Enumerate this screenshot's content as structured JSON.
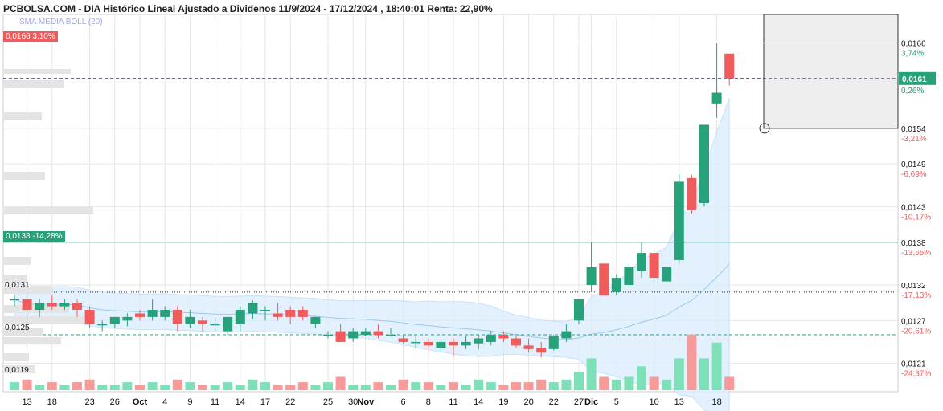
{
  "header": {
    "title": "PCBOLSA.COM - DIA Histórico Lineal Ajustado a Dividenos 11/9/2024 - 17/12/2024 , 18:40:01 Renta: 22,90%",
    "overlay_label": "SMA MEDIA BOLL (20)"
  },
  "colors": {
    "up": "#26a17a",
    "down": "#f05b5b",
    "band": "#dceefd",
    "grid": "#e6e6e6"
  },
  "levels": {
    "top_tag": {
      "price": 0.0166,
      "label": "0,0166",
      "pct": "3,10%"
    },
    "green_tag": {
      "price": 0.0138,
      "label": "0,0138",
      "pct": "-14,28%"
    },
    "dotted_label": {
      "price": 0.0131,
      "label": "0,0131"
    },
    "dashed_label": {
      "price": 0.0125,
      "label": "0,0125"
    },
    "bottom_label": {
      "price": 0.0119,
      "label": "0,0119"
    },
    "current": {
      "price": 0.0161,
      "label": "0,0161"
    }
  },
  "chart_data": {
    "type": "candlestick",
    "title": "PCBOLSA.COM - DIA Histórico Lineal Ajustado a Dividenos 11/9/2024 - 17/12/2024",
    "ylim": [
      0.0117,
      0.017
    ],
    "y_ticks": [
      {
        "price": 0.0166,
        "label": "0,0166",
        "pct": "3,74%"
      },
      {
        "price": 0.0154,
        "label": "0,0154",
        "pct": "-3,21%"
      },
      {
        "price": 0.0149,
        "label": "0,0149",
        "pct": "-6,69%"
      },
      {
        "price": 0.0143,
        "label": "0,0143",
        "pct": "-10,17%"
      },
      {
        "price": 0.0138,
        "label": "0,0138",
        "pct": "-13,65%"
      },
      {
        "price": 0.0132,
        "label": "0,0132",
        "pct": "-17,13%"
      },
      {
        "price": 0.0127,
        "label": "0,0127",
        "pct": "-20,61%"
      },
      {
        "price": 0.0121,
        "label": "0,0121",
        "pct": "-24,37%"
      }
    ],
    "current_pct": "0,26%",
    "x_labels": [
      {
        "i": 1,
        "label": "13"
      },
      {
        "i": 3,
        "label": "18"
      },
      {
        "i": 6,
        "label": "23"
      },
      {
        "i": 8,
        "label": "26"
      },
      {
        "i": 10,
        "label": "Oct"
      },
      {
        "i": 12,
        "label": "4"
      },
      {
        "i": 14,
        "label": "9"
      },
      {
        "i": 16,
        "label": "11"
      },
      {
        "i": 18,
        "label": "14"
      },
      {
        "i": 20,
        "label": "17"
      },
      {
        "i": 22,
        "label": "22"
      },
      {
        "i": 25,
        "label": "25"
      },
      {
        "i": 27,
        "label": "30"
      },
      {
        "i": 28,
        "label": "Nov"
      },
      {
        "i": 31,
        "label": "6"
      },
      {
        "i": 33,
        "label": "8"
      },
      {
        "i": 35,
        "label": "11"
      },
      {
        "i": 37,
        "label": "14"
      },
      {
        "i": 39,
        "label": "19"
      },
      {
        "i": 41,
        "label": "20"
      },
      {
        "i": 43,
        "label": "22"
      },
      {
        "i": 45,
        "label": "27"
      },
      {
        "i": 46,
        "label": "Dic"
      },
      {
        "i": 48,
        "label": "5"
      },
      {
        "i": 51,
        "label": "10"
      },
      {
        "i": 53,
        "label": "13"
      },
      {
        "i": 56,
        "label": "18"
      }
    ],
    "candles": [
      {
        "o": 0.013,
        "h": 0.01305,
        "l": 0.0129,
        "c": 0.013
      },
      {
        "o": 0.013,
        "h": 0.0131,
        "l": 0.01272,
        "c": 0.01285
      },
      {
        "o": 0.01285,
        "h": 0.013,
        "l": 0.01275,
        "c": 0.01295
      },
      {
        "o": 0.01295,
        "h": 0.01305,
        "l": 0.01285,
        "c": 0.0129
      },
      {
        "o": 0.0129,
        "h": 0.013,
        "l": 0.01285,
        "c": 0.01295
      },
      {
        "o": 0.01295,
        "h": 0.013,
        "l": 0.01275,
        "c": 0.01285
      },
      {
        "o": 0.01285,
        "h": 0.0129,
        "l": 0.0126,
        "c": 0.01265
      },
      {
        "o": 0.01265,
        "h": 0.0127,
        "l": 0.01255,
        "c": 0.01265
      },
      {
        "o": 0.01265,
        "h": 0.01275,
        "l": 0.0126,
        "c": 0.01275
      },
      {
        "o": 0.0127,
        "h": 0.0128,
        "l": 0.01262,
        "c": 0.01275
      },
      {
        "o": 0.0128,
        "h": 0.01285,
        "l": 0.0127,
        "c": 0.01275
      },
      {
        "o": 0.01275,
        "h": 0.013,
        "l": 0.0127,
        "c": 0.01285
      },
      {
        "o": 0.01275,
        "h": 0.0129,
        "l": 0.0127,
        "c": 0.01285
      },
      {
        "o": 0.01285,
        "h": 0.0129,
        "l": 0.01255,
        "c": 0.01265
      },
      {
        "o": 0.01265,
        "h": 0.01285,
        "l": 0.0126,
        "c": 0.01275
      },
      {
        "o": 0.0127,
        "h": 0.01275,
        "l": 0.01255,
        "c": 0.01265
      },
      {
        "o": 0.01265,
        "h": 0.01275,
        "l": 0.01255,
        "c": 0.01265
      },
      {
        "o": 0.01255,
        "h": 0.01275,
        "l": 0.0125,
        "c": 0.01275
      },
      {
        "o": 0.01265,
        "h": 0.0129,
        "l": 0.01255,
        "c": 0.01285
      },
      {
        "o": 0.0128,
        "h": 0.01298,
        "l": 0.01272,
        "c": 0.01295
      },
      {
        "o": 0.01285,
        "h": 0.0129,
        "l": 0.0127,
        "c": 0.01285
      },
      {
        "o": 0.0128,
        "h": 0.01295,
        "l": 0.0127,
        "c": 0.01275
      },
      {
        "o": 0.01285,
        "h": 0.0129,
        "l": 0.01265,
        "c": 0.01275
      },
      {
        "o": 0.01285,
        "h": 0.0129,
        "l": 0.0127,
        "c": 0.01275
      },
      {
        "o": 0.01265,
        "h": 0.01275,
        "l": 0.0126,
        "c": 0.01275
      },
      {
        "o": 0.0125,
        "h": 0.01255,
        "l": 0.01245,
        "c": 0.0125
      },
      {
        "o": 0.01255,
        "h": 0.01265,
        "l": 0.0124,
        "c": 0.0124
      },
      {
        "o": 0.01245,
        "h": 0.0126,
        "l": 0.0124,
        "c": 0.01255
      },
      {
        "o": 0.0125,
        "h": 0.0126,
        "l": 0.01248,
        "c": 0.01255
      },
      {
        "o": 0.01255,
        "h": 0.01265,
        "l": 0.01245,
        "c": 0.0125
      },
      {
        "o": 0.0125,
        "h": 0.0126,
        "l": 0.01248,
        "c": 0.0125
      },
      {
        "o": 0.01245,
        "h": 0.0125,
        "l": 0.01238,
        "c": 0.0124
      },
      {
        "o": 0.0124,
        "h": 0.0125,
        "l": 0.0123,
        "c": 0.0124
      },
      {
        "o": 0.0124,
        "h": 0.01245,
        "l": 0.0123,
        "c": 0.01235
      },
      {
        "o": 0.01232,
        "h": 0.01242,
        "l": 0.01225,
        "c": 0.0124
      },
      {
        "o": 0.0124,
        "h": 0.01245,
        "l": 0.0122,
        "c": 0.01235
      },
      {
        "o": 0.01235,
        "h": 0.01248,
        "l": 0.0123,
        "c": 0.0124
      },
      {
        "o": 0.01238,
        "h": 0.0125,
        "l": 0.0123,
        "c": 0.01245
      },
      {
        "o": 0.0124,
        "h": 0.01255,
        "l": 0.01235,
        "c": 0.0125
      },
      {
        "o": 0.0125,
        "h": 0.01255,
        "l": 0.0124,
        "c": 0.01245
      },
      {
        "o": 0.01245,
        "h": 0.01248,
        "l": 0.01232,
        "c": 0.01235
      },
      {
        "o": 0.01235,
        "h": 0.01245,
        "l": 0.01225,
        "c": 0.0123
      },
      {
        "o": 0.01232,
        "h": 0.0124,
        "l": 0.01218,
        "c": 0.01225
      },
      {
        "o": 0.0123,
        "h": 0.0125,
        "l": 0.01228,
        "c": 0.01248
      },
      {
        "o": 0.01245,
        "h": 0.01265,
        "l": 0.0124,
        "c": 0.01255
      },
      {
        "o": 0.0127,
        "h": 0.013,
        "l": 0.01265,
        "c": 0.013
      },
      {
        "o": 0.0132,
        "h": 0.0138,
        "l": 0.0131,
        "c": 0.01345
      },
      {
        "o": 0.0135,
        "h": 0.0135,
        "l": 0.01305,
        "c": 0.01305
      },
      {
        "o": 0.0131,
        "h": 0.01335,
        "l": 0.01305,
        "c": 0.0133
      },
      {
        "o": 0.0132,
        "h": 0.0135,
        "l": 0.01315,
        "c": 0.01345
      },
      {
        "o": 0.0134,
        "h": 0.0138,
        "l": 0.0133,
        "c": 0.01365
      },
      {
        "o": 0.01365,
        "h": 0.01365,
        "l": 0.01325,
        "c": 0.0133
      },
      {
        "o": 0.01325,
        "h": 0.01345,
        "l": 0.01325,
        "c": 0.01345
      },
      {
        "o": 0.01355,
        "h": 0.01475,
        "l": 0.0135,
        "c": 0.01465
      },
      {
        "o": 0.0147,
        "h": 0.01475,
        "l": 0.0142,
        "c": 0.01425
      },
      {
        "o": 0.01435,
        "h": 0.01545,
        "l": 0.0143,
        "c": 0.01545
      },
      {
        "o": 0.01575,
        "h": 0.0166,
        "l": 0.01555,
        "c": 0.0159
      },
      {
        "o": 0.01645,
        "h": 0.01645,
        "l": 0.016,
        "c": 0.0161
      }
    ],
    "volume": [
      3,
      4,
      2,
      3,
      2,
      3,
      4,
      2,
      2,
      3,
      2,
      3,
      2,
      4,
      3,
      2,
      2,
      3,
      2,
      4,
      3,
      2,
      2,
      3,
      2,
      3,
      5,
      2,
      2,
      3,
      2,
      4,
      3,
      3,
      2,
      3,
      2,
      4,
      3,
      2,
      3,
      3,
      4,
      3,
      4,
      7,
      12,
      5,
      4,
      5,
      9,
      5,
      4,
      12,
      21,
      12,
      18,
      5
    ]
  }
}
